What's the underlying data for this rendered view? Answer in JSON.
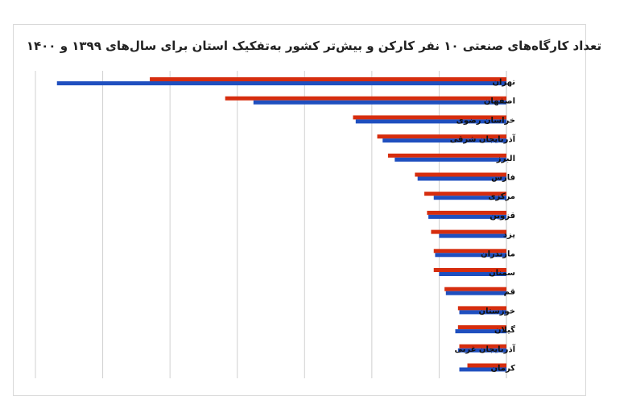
{
  "chart_data": {
    "type": "bar",
    "orientation": "horizontal",
    "title": "تعداد کارگاه‌های صنعتی ۱۰ نفر کارکن و بیش‌تر کشور به‌تفکیک استان برای سال‌های ۱۳۹۹ و ۱۴۰۰",
    "categories": [
      "تهران",
      "اصفهان",
      "خراسان رضوی",
      "آذربایجان شرقی",
      "البرز",
      "فارس",
      "مرکزی",
      "قزوین",
      "یزد",
      "مازندران",
      "سمنان",
      "قم",
      "خوزستان",
      "گیلان",
      "آذربایجان غربی",
      "کرمان"
    ],
    "series": [
      {
        "color": "#d62d0e",
        "values": [
          2650,
          2090,
          1140,
          960,
          880,
          680,
          610,
          590,
          560,
          540,
          540,
          460,
          360,
          360,
          350,
          290
        ]
      },
      {
        "color": "#1f4fbf",
        "values": [
          3340,
          1880,
          1120,
          920,
          830,
          660,
          540,
          580,
          500,
          530,
          500,
          450,
          350,
          380,
          360,
          350
        ]
      }
    ],
    "grid": true,
    "legend": "none"
  }
}
